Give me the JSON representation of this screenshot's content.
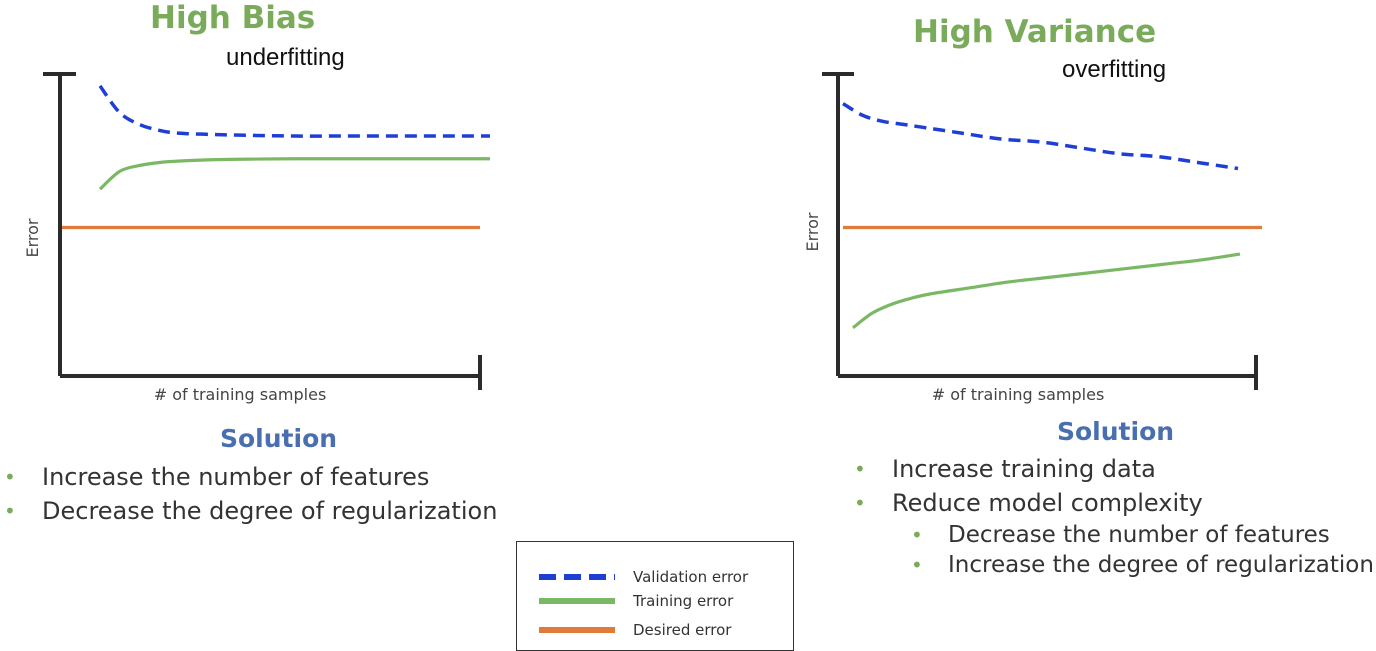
{
  "panels": {
    "bias": {
      "title": "High Bias",
      "subtitle": "underfitting",
      "solution_heading": "Solution",
      "solutions": [
        {
          "text": "Increase the number of features",
          "level": 1
        },
        {
          "text": "Decrease the degree of regularization",
          "level": 1
        }
      ]
    },
    "variance": {
      "title": "High Variance",
      "subtitle": "overfitting",
      "solution_heading": "Solution",
      "solutions": [
        {
          "text": "Increase training data",
          "level": 1
        },
        {
          "text": "Reduce model complexity",
          "level": 1
        },
        {
          "text": "Decrease the number of features",
          "level": 2
        },
        {
          "text": "Increase the degree of regularization",
          "level": 2
        }
      ]
    }
  },
  "legend": {
    "items": [
      {
        "label": "Validation error",
        "color": "#1f3ed6",
        "style": "dashed"
      },
      {
        "label": "Training error",
        "color": "#7ab865",
        "style": "solid"
      },
      {
        "label": "Desired error",
        "color": "#e07b39",
        "style": "solid"
      }
    ]
  },
  "chart_data": [
    {
      "type": "line",
      "title": "High Bias",
      "xlabel": "# of training samples",
      "ylabel": "Error",
      "xlim": [
        0,
        10
      ],
      "ylim": [
        0,
        10
      ],
      "grid": false,
      "legend_position": "bottom",
      "x": [
        0,
        0.5,
        1,
        1.5,
        2,
        3,
        4,
        5,
        6,
        7,
        8,
        9,
        10
      ],
      "series": [
        {
          "name": "Validation error",
          "color": "#1f3ed6",
          "style": "dashed",
          "values": [
            9.8,
            8.9,
            8.5,
            8.3,
            8.2,
            8.15,
            8.12,
            8.1,
            8.1,
            8.1,
            8.1,
            8.1,
            8.1
          ]
        },
        {
          "name": "Training error",
          "color": "#7ab865",
          "style": "solid",
          "values": [
            6.3,
            6.9,
            7.1,
            7.2,
            7.25,
            7.3,
            7.32,
            7.33,
            7.33,
            7.33,
            7.33,
            7.33,
            7.33
          ]
        },
        {
          "name": "Desired error",
          "color": "#e07b39",
          "style": "solid",
          "values": [
            5.0,
            5.0,
            5.0,
            5.0,
            5.0,
            5.0,
            5.0,
            5.0,
            5.0,
            5.0,
            5.0,
            5.0,
            5.0
          ]
        }
      ]
    },
    {
      "type": "line",
      "title": "High Variance",
      "xlabel": "# of training samples",
      "ylabel": "Error",
      "xlim": [
        0,
        10
      ],
      "ylim": [
        0,
        10
      ],
      "grid": false,
      "legend_position": "bottom",
      "x": [
        0,
        0.5,
        1,
        1.5,
        2,
        3,
        4,
        5,
        6,
        7,
        8,
        9,
        10
      ],
      "series": [
        {
          "name": "Validation error",
          "color": "#1f3ed6",
          "style": "dashed",
          "values": [
            9.2,
            8.8,
            8.6,
            8.5,
            8.4,
            8.2,
            8.0,
            7.9,
            7.7,
            7.5,
            7.4,
            7.2,
            7.0
          ]
        },
        {
          "name": "Training error",
          "color": "#7ab865",
          "style": "solid",
          "values": [
            1.6,
            2.1,
            2.4,
            2.6,
            2.75,
            2.95,
            3.15,
            3.3,
            3.45,
            3.6,
            3.75,
            3.9,
            4.1
          ]
        },
        {
          "name": "Desired error",
          "color": "#e07b39",
          "style": "solid",
          "values": [
            5.0,
            5.0,
            5.0,
            5.0,
            5.0,
            5.0,
            5.0,
            5.0,
            5.0,
            5.0,
            5.0,
            5.0,
            5.0
          ]
        }
      ]
    }
  ]
}
